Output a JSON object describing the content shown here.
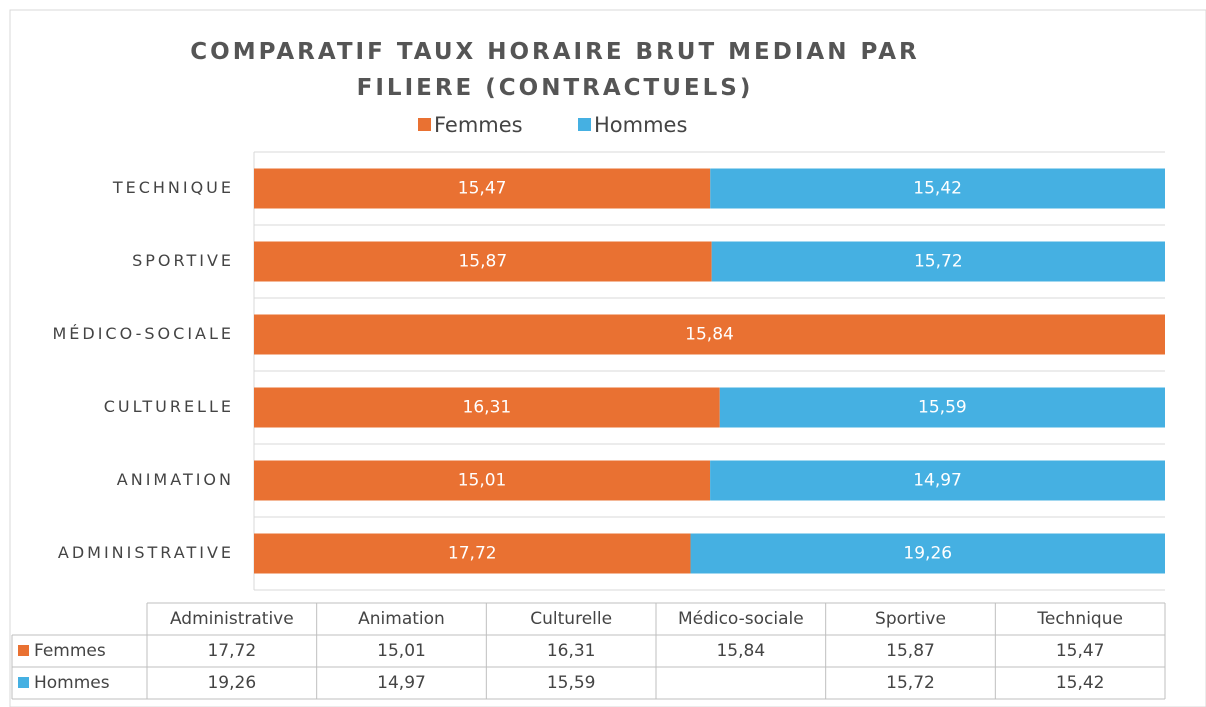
{
  "chart_data": {
    "type": "bar",
    "orientation": "horizontal",
    "stacking": "percent",
    "title": "COMPARATIF TAUX HORAIRE BRUT MEDIAN PAR FILIERE (CONTRACTUELS)",
    "categories": [
      "Administrative",
      "Animation",
      "Culturelle",
      "Médico-sociale",
      "Sportive",
      "Technique"
    ],
    "series": [
      {
        "name": "Femmes",
        "color": "#E97132",
        "values": [
          17.72,
          15.01,
          16.31,
          15.84,
          15.87,
          15.47
        ],
        "value_labels": [
          "17,72",
          "15,01",
          "16,31",
          "15,84",
          "15,87",
          "15,47"
        ]
      },
      {
        "name": "Hommes",
        "color": "#45B0E2",
        "values": [
          19.26,
          14.97,
          15.59,
          null,
          15.72,
          15.42
        ],
        "value_labels": [
          "19,26",
          "14,97",
          "15,59",
          null,
          "15,72",
          "15,42"
        ]
      }
    ],
    "legend": "top",
    "data_table": true
  }
}
